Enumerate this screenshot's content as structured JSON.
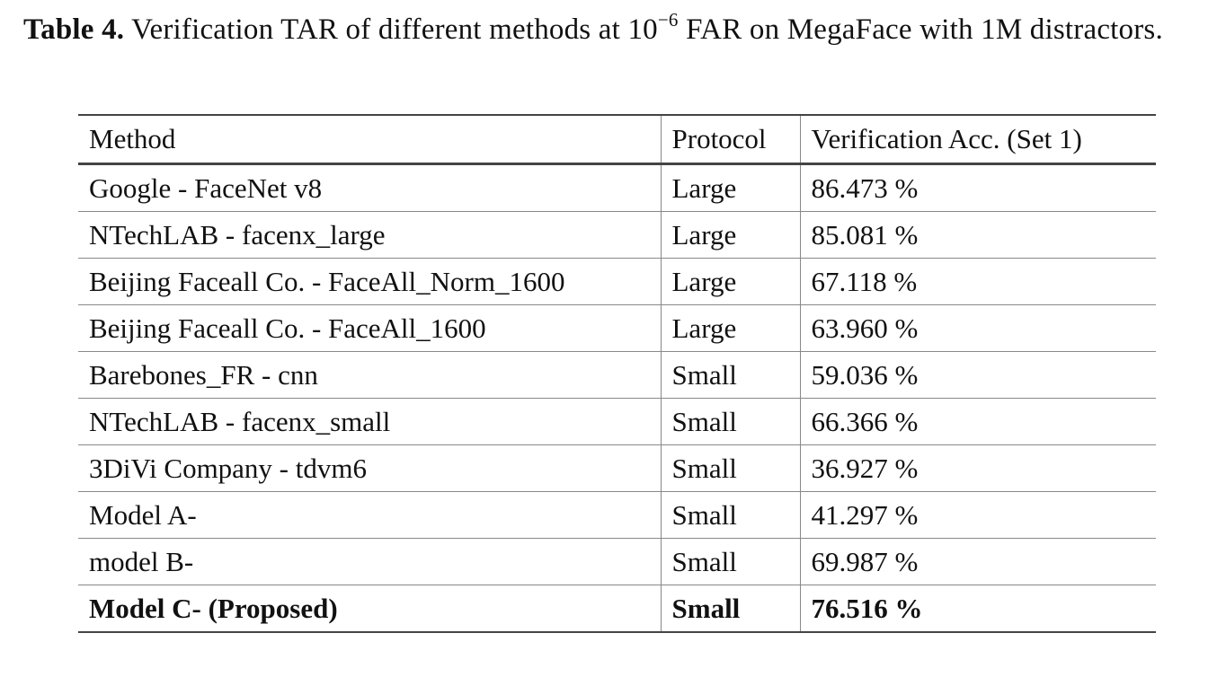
{
  "caption": {
    "label": "Table 4.",
    "text_before_exp": " Verification TAR of different methods at 10",
    "exponent": "−6",
    "text_after_exp": " FAR on MegaFace with 1M distractors."
  },
  "table": {
    "headers": [
      "Method",
      "Protocol",
      "Verification Acc. (Set 1)"
    ],
    "rows": [
      {
        "method": "Google - FaceNet v8",
        "protocol": "Large",
        "acc": "86.473 %"
      },
      {
        "method": "NTechLAB - facenx_large",
        "protocol": "Large",
        "acc": "85.081 %"
      },
      {
        "method": "Beijing Faceall Co. - FaceAll_Norm_1600",
        "protocol": "Large",
        "acc": "67.118 %"
      },
      {
        "method": "Beijing Faceall Co. - FaceAll_1600",
        "protocol": "Large",
        "acc": "63.960 %"
      },
      {
        "method": "Barebones_FR - cnn",
        "protocol": "Small",
        "acc": "59.036 %"
      },
      {
        "method": "NTechLAB - facenx_small",
        "protocol": "Small",
        "acc": "66.366 %"
      },
      {
        "method": "3DiVi Company - tdvm6",
        "protocol": "Small",
        "acc": "36.927 %"
      },
      {
        "method": "Model A-",
        "protocol": "Small",
        "acc": "41.297 %"
      },
      {
        "method": "model B-",
        "protocol": "Small",
        "acc": "69.987 %"
      },
      {
        "method": "Model C- (Proposed)",
        "protocol": "Small",
        "acc": "76.516 %"
      }
    ]
  }
}
